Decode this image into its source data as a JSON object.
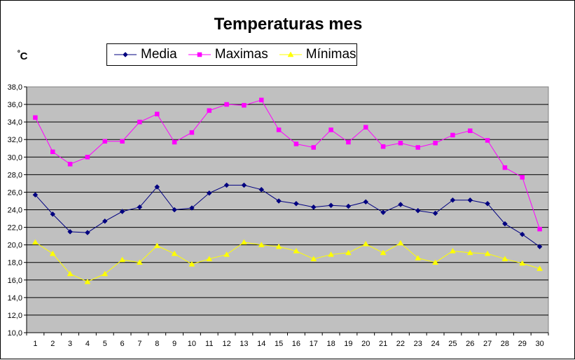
{
  "chart_data": {
    "type": "line",
    "title": "Temperaturas mes",
    "ylabel_prefix": "º",
    "ylabel_main": "C",
    "xlabel": "",
    "x": [
      1,
      2,
      3,
      4,
      5,
      6,
      7,
      8,
      9,
      10,
      11,
      12,
      13,
      14,
      15,
      16,
      17,
      18,
      19,
      20,
      21,
      22,
      23,
      24,
      25,
      26,
      27,
      28,
      29,
      30
    ],
    "ylim": [
      10,
      38
    ],
    "yticks": [
      "10,0",
      "12,0",
      "14,0",
      "16,0",
      "18,0",
      "20,0",
      "22,0",
      "24,0",
      "26,0",
      "28,0",
      "30,0",
      "32,0",
      "34,0",
      "36,0",
      "38,0"
    ],
    "grid": true,
    "legend": "top",
    "plot_background": "#C0C0C0",
    "series": [
      {
        "name": "Media",
        "color": "#000080",
        "marker": "diamond",
        "values": [
          25.7,
          23.5,
          21.5,
          21.4,
          22.7,
          23.8,
          24.3,
          26.6,
          24.0,
          24.2,
          25.9,
          26.8,
          26.8,
          26.3,
          25.0,
          24.7,
          24.3,
          24.5,
          24.4,
          24.9,
          23.7,
          24.6,
          23.9,
          23.6,
          25.1,
          25.1,
          24.7,
          22.4,
          21.2,
          19.8
        ]
      },
      {
        "name": "Maximas",
        "color": "#FF00FF",
        "marker": "square",
        "values": [
          34.5,
          30.6,
          29.2,
          30.0,
          31.8,
          31.8,
          34.0,
          34.9,
          31.7,
          32.8,
          35.3,
          36.0,
          35.9,
          36.5,
          33.1,
          31.5,
          31.1,
          33.1,
          31.7,
          33.4,
          31.2,
          31.6,
          31.1,
          31.6,
          32.5,
          33.0,
          31.9,
          28.8,
          27.7,
          21.8
        ]
      },
      {
        "name": "Mínimas",
        "color": "#FFFF00",
        "marker": "triangle",
        "values": [
          20.3,
          19.0,
          16.7,
          15.8,
          16.7,
          18.3,
          18.0,
          19.9,
          19.0,
          17.8,
          18.4,
          18.9,
          20.3,
          20.0,
          19.8,
          19.3,
          18.4,
          18.9,
          19.1,
          20.1,
          19.1,
          20.2,
          18.5,
          18.0,
          19.3,
          19.1,
          19.0,
          18.4,
          17.9,
          17.3
        ]
      }
    ]
  }
}
